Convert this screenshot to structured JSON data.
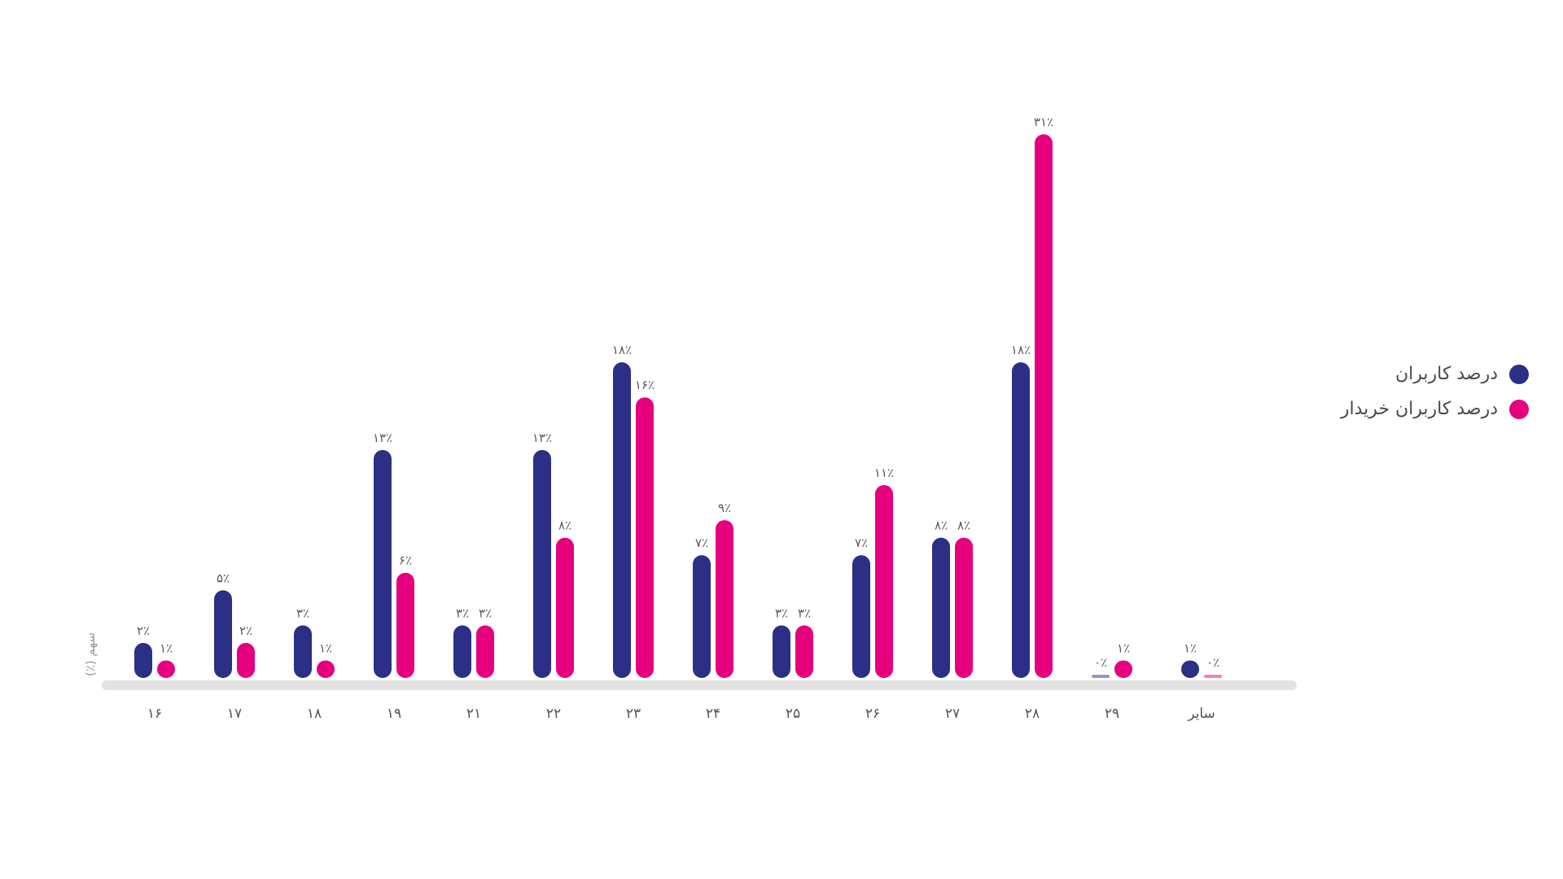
{
  "chart_data": {
    "type": "bar",
    "categories": [
      "۱۶",
      "۱۷",
      "۱۸",
      "۱۹",
      "۲۱",
      "۲۲",
      "۲۳",
      "۲۴",
      "۲۵",
      "۲۶",
      "۲۷",
      "۲۸",
      "۲۹",
      "سایر"
    ],
    "series": [
      {
        "name": "درصد کاربران",
        "color": "#2b2f86",
        "values": [
          2,
          5,
          3,
          13,
          3,
          13,
          18,
          7,
          3,
          7,
          8,
          18,
          0,
          1
        ],
        "labels": [
          "۲٪",
          "۵٪",
          "۳٪",
          "۱۳٪",
          "۳٪",
          "۱۳٪",
          "۱۸٪",
          "۷٪",
          "۳٪",
          "۷٪",
          "۸٪",
          "۱۸٪",
          "۰٪",
          "۱٪"
        ]
      },
      {
        "name": "درصد کاربران خریدار",
        "color": "#e6007e",
        "values": [
          1,
          2,
          1,
          6,
          3,
          8,
          16,
          9,
          3,
          11,
          8,
          31,
          1,
          0
        ],
        "labels": [
          "۱٪",
          "۲٪",
          "۱٪",
          "۶٪",
          "۳٪",
          "۸٪",
          "۱۶٪",
          "۹٪",
          "۳٪",
          "۱۱٪",
          "۸٪",
          "۳۱٪",
          "۱٪",
          "۰٪"
        ]
      }
    ],
    "ylabel": "سهم (٪)",
    "ylim": [
      0,
      31
    ],
    "grid": false,
    "legend_position": "right"
  }
}
